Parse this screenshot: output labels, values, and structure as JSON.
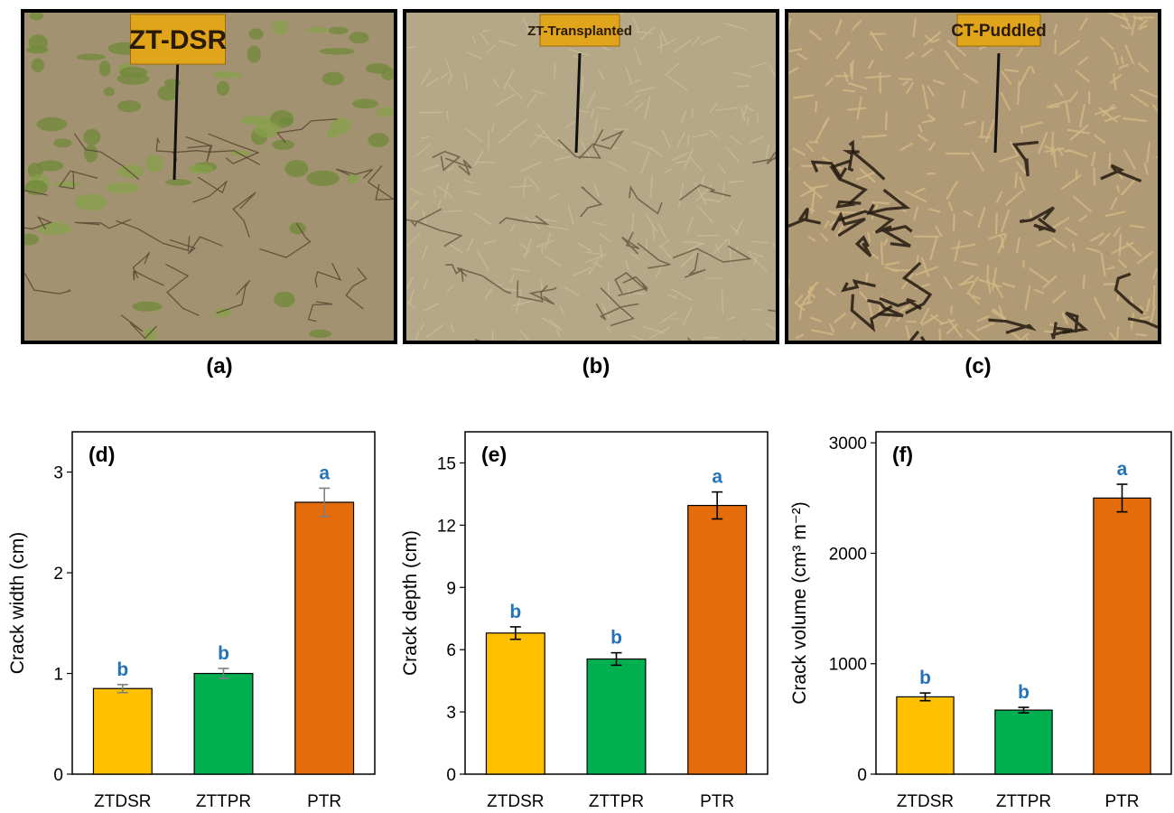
{
  "photos": [
    {
      "label": "(a)",
      "sign": "ZT-DSR",
      "sign_size": 30,
      "ground": "#a39271",
      "accent": "#6f8a3a",
      "crack": "#5a4632",
      "cover": "green"
    },
    {
      "label": "(b)",
      "sign": "ZT-Transplanted",
      "sign_size": 15,
      "ground": "#b5a888",
      "accent": "#c9bb98",
      "crack": "#6a5a44",
      "cover": "straw"
    },
    {
      "label": "(c)",
      "sign": "CT-Puddled",
      "sign_size": 19,
      "ground": "#b09a76",
      "accent": "#d2b784",
      "crack": "#231a10",
      "cover": "stubble"
    }
  ],
  "chart_data": [
    {
      "type": "bar",
      "tag": "(d)",
      "ylabel": "Crack width (cm)",
      "ylim": [
        0,
        3.4
      ],
      "yticks": [
        0,
        1,
        2,
        3
      ],
      "categories": [
        "ZTDSR",
        "ZTTPR",
        "PTR"
      ],
      "values": [
        0.85,
        1.0,
        2.7
      ],
      "errors": [
        0.04,
        0.05,
        0.14
      ],
      "significance": [
        "b",
        "b",
        "a"
      ],
      "colors": [
        "#ffc000",
        "#00b050",
        "#e46c0a"
      ],
      "error_color": "#7f7f7f"
    },
    {
      "type": "bar",
      "tag": "(e)",
      "ylabel": "Crack depth (cm)",
      "ylim": [
        0,
        16.5
      ],
      "yticks": [
        0,
        3,
        6,
        9,
        12,
        15
      ],
      "categories": [
        "ZTDSR",
        "ZTTPR",
        "PTR"
      ],
      "values": [
        6.8,
        5.55,
        12.95
      ],
      "errors": [
        0.3,
        0.3,
        0.65
      ],
      "significance": [
        "b",
        "b",
        "a"
      ],
      "colors": [
        "#ffc000",
        "#00b050",
        "#e46c0a"
      ],
      "error_color": "#000000"
    },
    {
      "type": "bar",
      "tag": "(f)",
      "ylabel": "Crack volume (cm³ m⁻²)",
      "ylim": [
        0,
        3100
      ],
      "yticks": [
        0,
        1000,
        2000,
        3000
      ],
      "categories": [
        "ZTDSR",
        "ZTTPR",
        "PTR"
      ],
      "values": [
        700,
        580,
        2500
      ],
      "errors": [
        35,
        25,
        125
      ],
      "significance": [
        "b",
        "b",
        "a"
      ],
      "colors": [
        "#ffc000",
        "#00b050",
        "#e46c0a"
      ],
      "error_color": "#000000"
    }
  ]
}
